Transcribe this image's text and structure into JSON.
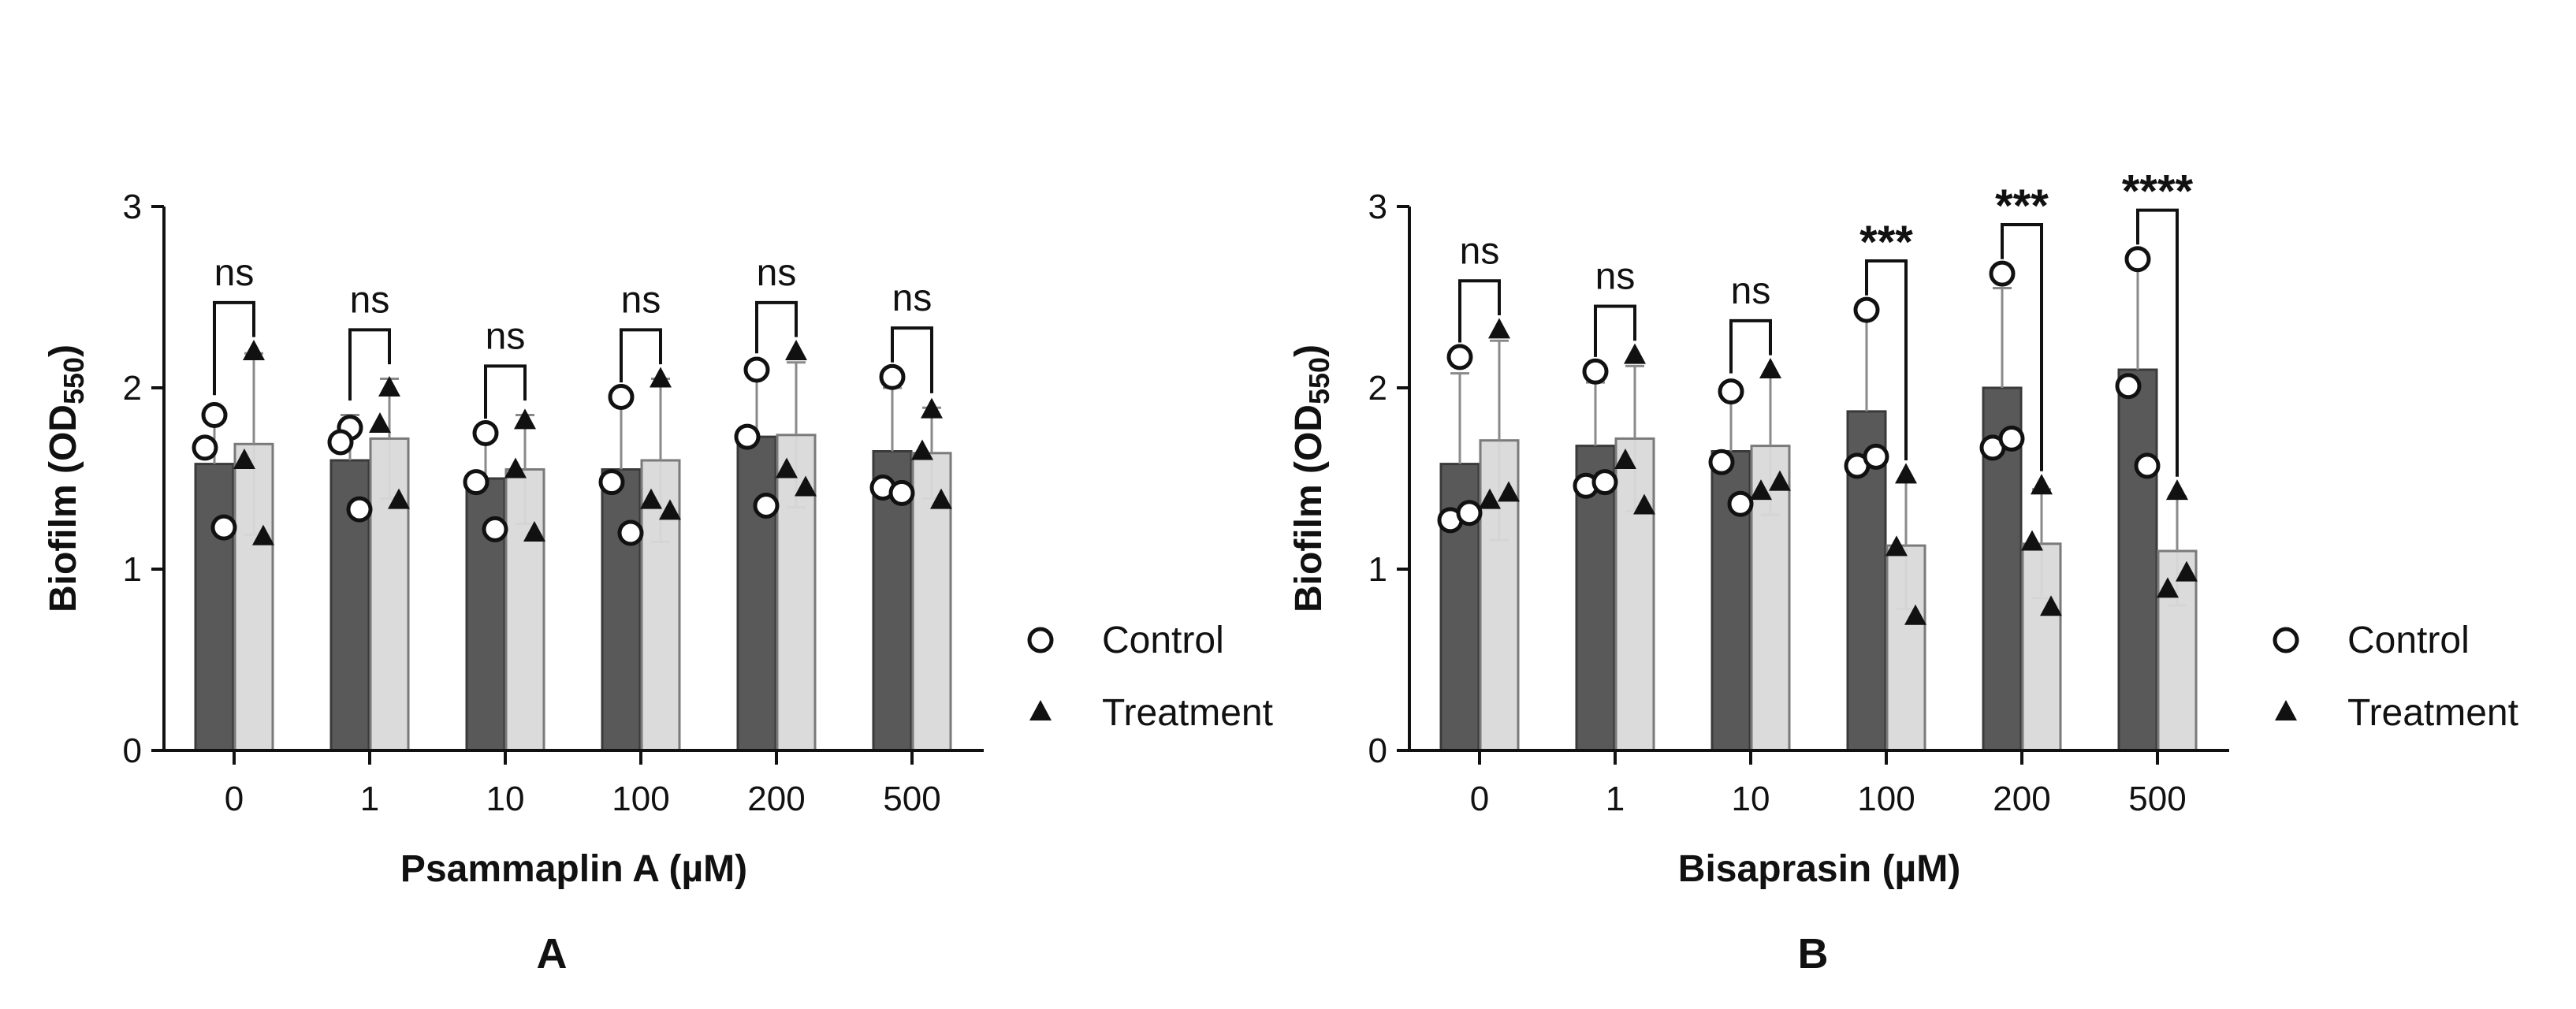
{
  "chart_data": [
    {
      "id": "A",
      "type": "bar",
      "panel_label": "A",
      "xlabel": "Psammaplin A (µM)",
      "ylabel": "Biofilm (OD",
      "ylabel_sub": "550",
      "ylabel_close": ")",
      "ylim": [
        0,
        3
      ],
      "yticks": [
        "0",
        "1",
        "2",
        "3"
      ],
      "categories": [
        "0",
        "1",
        "10",
        "100",
        "200",
        "500"
      ],
      "series": [
        {
          "name": "Control",
          "marker": "circle",
          "color": "#595959",
          "values": [
            1.58,
            1.6,
            1.5,
            1.55,
            1.73,
            1.65
          ],
          "sd": [
            0.3,
            0.25,
            0.25,
            0.38,
            0.38,
            0.35
          ],
          "points": [
            [
              1.85,
              1.67,
              1.23
            ],
            [
              1.78,
              1.7,
              1.33
            ],
            [
              1.75,
              1.48,
              1.22
            ],
            [
              1.95,
              1.48,
              1.2
            ],
            [
              2.1,
              1.73,
              1.35
            ],
            [
              2.06,
              1.45,
              1.42
            ]
          ]
        },
        {
          "name": "Treatment",
          "marker": "triangle",
          "color": "#d9d9d9",
          "values": [
            1.69,
            1.72,
            1.55,
            1.6,
            1.74,
            1.64
          ],
          "sd": [
            0.5,
            0.33,
            0.3,
            0.45,
            0.4,
            0.25
          ],
          "points": [
            [
              2.2,
              1.6,
              1.18
            ],
            [
              2.0,
              1.8,
              1.38
            ],
            [
              1.82,
              1.55,
              1.2
            ],
            [
              2.05,
              1.38,
              1.32
            ],
            [
              2.2,
              1.55,
              1.45
            ],
            [
              1.88,
              1.65,
              1.38
            ]
          ]
        }
      ],
      "significance": [
        "ns",
        "ns",
        "ns",
        "ns",
        "ns",
        "ns"
      ],
      "legend": [
        "Control",
        "Treatment"
      ]
    },
    {
      "id": "B",
      "type": "bar",
      "panel_label": "B",
      "xlabel": "Bisaprasin (µM)",
      "ylabel": "Biofilm (OD",
      "ylabel_sub": "550",
      "ylabel_close": ")",
      "ylim": [
        0,
        3
      ],
      "yticks": [
        "0",
        "1",
        "2",
        "3"
      ],
      "categories": [
        "0",
        "1",
        "10",
        "100",
        "200",
        "500"
      ],
      "series": [
        {
          "name": "Control",
          "marker": "circle",
          "color": "#595959",
          "values": [
            1.58,
            1.68,
            1.65,
            1.87,
            2.0,
            2.1
          ],
          "sd": [
            0.5,
            0.35,
            0.35,
            0.52,
            0.55,
            0.6
          ],
          "points": [
            [
              2.17,
              1.27,
              1.31
            ],
            [
              2.09,
              1.46,
              1.48
            ],
            [
              1.98,
              1.59,
              1.36
            ],
            [
              2.43,
              1.57,
              1.62
            ],
            [
              2.63,
              1.67,
              1.72
            ],
            [
              2.71,
              2.01,
              1.57
            ]
          ]
        },
        {
          "name": "Treatment",
          "marker": "triangle",
          "color": "#d9d9d9",
          "values": [
            1.71,
            1.72,
            1.68,
            1.13,
            1.14,
            1.1
          ],
          "sd": [
            0.55,
            0.4,
            0.38,
            0.35,
            0.3,
            0.3
          ],
          "points": [
            [
              2.32,
              1.38,
              1.42
            ],
            [
              2.18,
              1.6,
              1.35
            ],
            [
              2.1,
              1.43,
              1.48
            ],
            [
              1.52,
              1.12,
              0.74
            ],
            [
              1.46,
              1.15,
              0.79
            ],
            [
              1.43,
              0.89,
              0.98
            ]
          ]
        }
      ],
      "significance": [
        "ns",
        "ns",
        "ns",
        "***",
        "***",
        "****"
      ],
      "legend": [
        "Control",
        "Treatment"
      ]
    }
  ]
}
